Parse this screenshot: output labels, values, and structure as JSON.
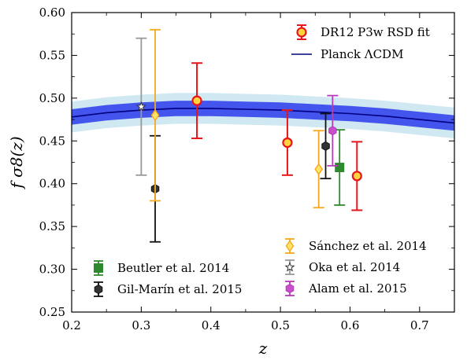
{
  "chart_data": {
    "type": "scatter",
    "xlabel": "z",
    "ylabel": "f σ8(z)",
    "xlim": [
      0.2,
      0.75
    ],
    "ylim": [
      0.25,
      0.6
    ],
    "x_ticks": [
      "0.2",
      "0.3",
      "0.4",
      "0.5",
      "0.6",
      "0.7"
    ],
    "y_ticks": [
      "0.25",
      "0.30",
      "0.35",
      "0.40",
      "0.45",
      "0.50",
      "0.55",
      "0.60"
    ],
    "grid": false,
    "model": {
      "name": "Planck ΛCDM",
      "color": "#00007f",
      "band_inner_color": "#4455ee",
      "band_outer_color": "#cfe8f2",
      "x": [
        0.2,
        0.25,
        0.3,
        0.35,
        0.4,
        0.45,
        0.5,
        0.55,
        0.6,
        0.65,
        0.7,
        0.75
      ],
      "y": [
        0.478,
        0.483,
        0.486,
        0.488,
        0.488,
        0.487,
        0.486,
        0.484,
        0.482,
        0.479,
        0.475,
        0.471
      ],
      "inner_halfwidth": 0.009,
      "outer_halfwidth": 0.018
    },
    "series": [
      {
        "name": "DR12 P3w RSD fit",
        "marker": "circle",
        "color": "#e8151b",
        "fill": "#ffd33d",
        "points": [
          {
            "x": 0.38,
            "y": 0.497,
            "err": 0.044
          },
          {
            "x": 0.51,
            "y": 0.448,
            "err": 0.038
          },
          {
            "x": 0.61,
            "y": 0.409,
            "err": 0.04
          }
        ]
      },
      {
        "name": "Beutler et al. 2014",
        "marker": "square",
        "color": "#2f8a2f",
        "fill": "#2f8a2f",
        "points": [
          {
            "x": 0.585,
            "y": 0.419,
            "err": 0.044
          }
        ]
      },
      {
        "name": "Gil-Marín et al. 2015",
        "marker": "hexagon",
        "color": "#111111",
        "fill": "#333333",
        "points": [
          {
            "x": 0.32,
            "y": 0.394,
            "err": 0.062
          },
          {
            "x": 0.565,
            "y": 0.444,
            "err": 0.038
          }
        ]
      },
      {
        "name": "Sánchez et al. 2014",
        "marker": "diamond",
        "color": "#f7a81c",
        "fill": "#ffe566",
        "points": [
          {
            "x": 0.32,
            "y": 0.48,
            "err": 0.1
          },
          {
            "x": 0.555,
            "y": 0.417,
            "err": 0.045
          }
        ]
      },
      {
        "name": "Oka et al. 2014",
        "marker": "star",
        "color": "#999999",
        "fill": "#ffffff",
        "points": [
          {
            "x": 0.3,
            "y": 0.49,
            "err": 0.08
          }
        ]
      },
      {
        "name": "Alam et al. 2015",
        "marker": "hexagon",
        "color": "#b43cb8",
        "fill": "#c84fcc",
        "points": [
          {
            "x": 0.575,
            "y": 0.462,
            "err": 0.041
          }
        ]
      }
    ],
    "legends": {
      "upper_right": [
        "DR12 P3w RSD fit",
        "Planck ΛCDM"
      ],
      "lower_left": [
        "Beutler et al. 2014",
        "Gil-Marín et al. 2015"
      ],
      "lower_right": [
        "Sánchez et al. 2014",
        "Oka et al. 2014",
        "Alam et al. 2015"
      ]
    }
  }
}
